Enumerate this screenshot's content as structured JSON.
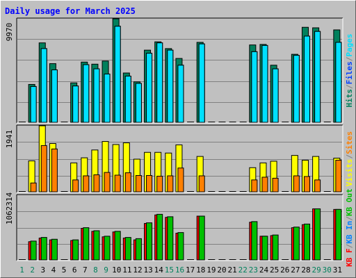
{
  "chart_data": {
    "type": "bar",
    "title": "Daily usage for March 2025",
    "x": [
      "1",
      "2",
      "3",
      "4",
      "5",
      "6",
      "7",
      "8",
      "9",
      "10",
      "11",
      "12",
      "13",
      "14",
      "15",
      "16",
      "17",
      "18",
      "19",
      "20",
      "21",
      "22",
      "23",
      "24",
      "25",
      "26",
      "27",
      "28",
      "29",
      "30",
      "31"
    ],
    "weekend_days": [
      1,
      2,
      8,
      9,
      15,
      16,
      22,
      23,
      29,
      30
    ],
    "panels": [
      {
        "id": "hits-files-pages",
        "ymax_label": "9970",
        "ylim": [
          0,
          9970
        ],
        "right_label_parts": [
          {
            "text": "Hits",
            "color": "#00805C"
          },
          {
            "text": "/",
            "color": "#808080"
          },
          {
            "text": "Files",
            "color": "#0040FF"
          },
          {
            "text": "/",
            "color": "#808080"
          },
          {
            "text": "Pages",
            "color": "#00E0FF"
          }
        ],
        "series": [
          {
            "name": "Hits",
            "color": "#00805C",
            "values": [
              0,
              3650,
              7650,
              5650,
              0,
              3800,
              5800,
              5600,
              5900,
              9970,
              4750,
              3900,
              6950,
              7750,
              7100,
              6150,
              0,
              7700,
              0,
              0,
              0,
              0,
              7450,
              7500,
              5500,
              0,
              6550,
              9150,
              9100,
              0,
              8900
            ]
          },
          {
            "name": "Files",
            "color": "#0040FF",
            "values": [
              0,
              3450,
              7100,
              5050,
              0,
              3500,
              5550,
              5150,
              4650,
              9250,
              4450,
              3750,
              6650,
              7650,
              6950,
              5500,
              0,
              7550,
              0,
              0,
              0,
              0,
              6800,
              7400,
              5150,
              0,
              6450,
              8300,
              8750,
              0,
              7700
            ]
          },
          {
            "name": "Pages",
            "color": "#00E0FF",
            "values": [
              0,
              3450,
              7100,
              5050,
              0,
              3500,
              5550,
              5150,
              4650,
              9250,
              4450,
              3750,
              6650,
              7650,
              6950,
              5500,
              0,
              7550,
              0,
              0,
              0,
              0,
              6800,
              7400,
              5150,
              0,
              6450,
              8300,
              8750,
              0,
              7700
            ]
          }
        ]
      },
      {
        "id": "visits-sites",
        "ymax_label": "1941",
        "ylim": [
          0,
          1941
        ],
        "right_label_parts": [
          {
            "text": "Visits",
            "color": "#FFFF00"
          },
          {
            "text": "/",
            "color": "#808080"
          },
          {
            "text": "Sites",
            "color": "#FF8000"
          }
        ],
        "series": [
          {
            "name": "Visits",
            "color": "#FFFF00",
            "values": [
              0,
              910,
              1941,
              1420,
              0,
              850,
              1000,
              1230,
              1480,
              1390,
              1440,
              960,
              1160,
              1160,
              1140,
              1380,
              0,
              1040,
              0,
              0,
              0,
              0,
              710,
              850,
              900,
              0,
              1070,
              930,
              1040,
              0,
              990
            ]
          },
          {
            "name": "Sites",
            "color": "#FF8000",
            "values": [
              0,
              260,
              1360,
              1260,
              0,
              350,
              470,
              500,
              570,
              490,
              560,
              480,
              480,
              460,
              470,
              700,
              0,
              470,
              0,
              0,
              0,
              0,
              350,
              430,
              400,
              0,
              470,
              450,
              350,
              0,
              930
            ]
          }
        ]
      },
      {
        "id": "kbytes",
        "ymax_label": "1062314",
        "ylim": [
          0,
          1062314
        ],
        "right_label_parts": [
          {
            "text": "KB F",
            "color": "#FF0000"
          },
          {
            "text": "/",
            "color": "#808080"
          },
          {
            "text": "KB In",
            "color": "#0080FF"
          },
          {
            "text": "/",
            "color": "#808080"
          },
          {
            "text": "KB Out",
            "color": "#00C000"
          }
        ],
        "series": [
          {
            "name": "KB F",
            "color": "#FF0000",
            "values": [
              0,
              300000,
              360000,
              330000,
              0,
              320000,
              520000,
              470000,
              380000,
              460000,
              360000,
              330000,
              600000,
              740000,
              700000,
              440000,
              0,
              720000,
              0,
              0,
              0,
              0,
              620000,
              390000,
              400000,
              0,
              530000,
              580000,
              840000,
              0,
              830000
            ]
          },
          {
            "name": "KB Out",
            "color": "#00C000",
            "values": [
              0,
              310000,
              370000,
              340000,
              0,
              330000,
              530000,
              480000,
              390000,
              470000,
              370000,
              350000,
              610000,
              750000,
              710000,
              450000,
              0,
              720000,
              0,
              0,
              0,
              0,
              630000,
              390000,
              410000,
              0,
              540000,
              590000,
              840000,
              0,
              830000
            ]
          }
        ]
      }
    ],
    "colors": {
      "background": "#C0C0C0",
      "title": "#0000FF",
      "grid": "#808080",
      "day_label": "#000000",
      "weekend_label": "#00805C"
    }
  }
}
